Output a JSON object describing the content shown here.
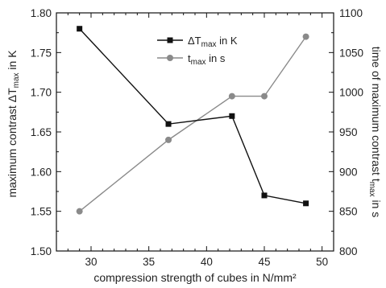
{
  "chart_data": {
    "type": "line",
    "x": [
      29,
      36.7,
      42.2,
      45,
      48.6
    ],
    "xlim": [
      27,
      51
    ],
    "xticks": [
      30,
      35,
      40,
      45,
      50
    ],
    "xlabel": "compression strength of cubes in N/mm²",
    "series": [
      {
        "name": "ΔT_max in K",
        "axis": "left",
        "marker": "square",
        "color": "#111111",
        "values": [
          1.78,
          1.66,
          1.67,
          1.57,
          1.56
        ]
      },
      {
        "name": "t_max in s",
        "axis": "right",
        "marker": "circle",
        "color": "#8a8a8a",
        "values": [
          850,
          940,
          995,
          995,
          1070
        ]
      }
    ],
    "y_left": {
      "label": "maximum contrast ΔT_max in K",
      "lim": [
        1.5,
        1.8
      ],
      "ticks": [
        1.5,
        1.55,
        1.6,
        1.65,
        1.7,
        1.75,
        1.8
      ]
    },
    "y_right": {
      "label": "time of maximum contrast t_max in s",
      "lim": [
        800,
        1100
      ],
      "ticks": [
        800,
        850,
        900,
        950,
        1000,
        1050,
        1100
      ]
    },
    "legend_position": "top-center",
    "grid": false
  }
}
